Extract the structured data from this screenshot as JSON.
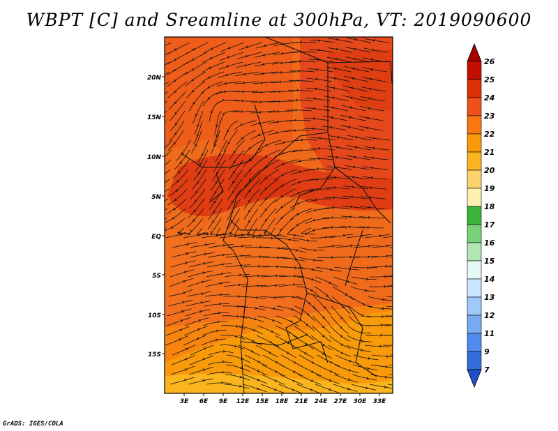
{
  "title": "WBPT [C] and Sreamline at 300hPa, VT: 2019090600",
  "credit": "GrADS: IGES/COLA",
  "map": {
    "lat_labels": [
      "20N",
      "15N",
      "10N",
      "5N",
      "EQ",
      "5S",
      "10S",
      "15S"
    ],
    "lon_labels": [
      "3E",
      "6E",
      "9E",
      "12E",
      "15E",
      "18E",
      "21E",
      "24E",
      "27E",
      "30E",
      "33E"
    ]
  },
  "colorbar": {
    "labels": [
      "26",
      "25",
      "24",
      "23",
      "22",
      "21",
      "20",
      "19",
      "18",
      "17",
      "16",
      "15",
      "14",
      "13",
      "12",
      "11",
      "9",
      "7"
    ],
    "colors": [
      "#a50000",
      "#c40f00",
      "#dc2f06",
      "#f0501a",
      "#f97814",
      "#fa9a0a",
      "#fab41e",
      "#fad26e",
      "#fdf0b0",
      "#3cb43c",
      "#78d278",
      "#b4e6b4",
      "#e6f8f5",
      "#c8e6ff",
      "#a0c8f8",
      "#78aaf0",
      "#508cf0",
      "#326edc",
      "#1e50c8"
    ]
  }
}
